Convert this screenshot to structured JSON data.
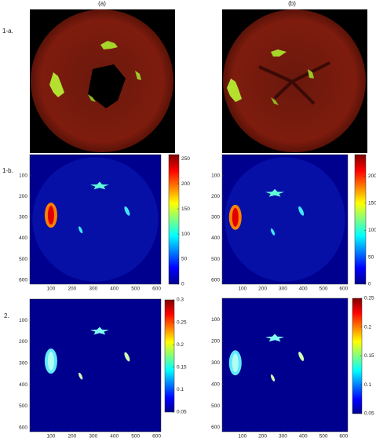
{
  "column_labels": [
    "(a)",
    "(b)"
  ],
  "row_labels": [
    "1-a.",
    "1-b.",
    "2."
  ],
  "panels": [
    {
      "xlim": [
        0,
        620
      ],
      "ylim": [
        0,
        620
      ],
      "xticks": [
        100,
        200,
        300,
        400,
        500,
        600
      ],
      "yticks": [
        100,
        200,
        300,
        400,
        500,
        600
      ],
      "clim": [
        0,
        258
      ],
      "cticks": [
        0,
        50,
        100,
        150,
        200,
        250
      ]
    },
    {
      "xlim": [
        0,
        620
      ],
      "ylim": [
        0,
        620
      ],
      "xticks": [
        100,
        200,
        300,
        400,
        500,
        600
      ],
      "yticks": [
        100,
        200,
        300,
        400,
        500,
        600
      ],
      "clim": [
        0,
        240
      ],
      "cticks": [
        0,
        50,
        100,
        150,
        200
      ]
    },
    {
      "xlim": [
        0,
        620
      ],
      "ylim": [
        0,
        620
      ],
      "xticks": [
        100,
        200,
        300,
        400,
        500,
        600
      ],
      "yticks": [
        100,
        200,
        300,
        400,
        500,
        600
      ],
      "clim": [
        0.05,
        0.3
      ],
      "cticks": [
        0.05,
        0.1,
        0.15,
        0.2,
        0.25,
        0.3
      ]
    },
    {
      "xlim": [
        0,
        620
      ],
      "ylim": [
        0,
        620
      ],
      "xticks": [
        100,
        200,
        300,
        400,
        500,
        600
      ],
      "yticks": [
        100,
        200,
        300,
        400,
        500,
        600
      ],
      "clim": [
        0.05,
        0.25
      ],
      "cticks": [
        0.05,
        0.1,
        0.15,
        0.2,
        0.25
      ]
    }
  ]
}
